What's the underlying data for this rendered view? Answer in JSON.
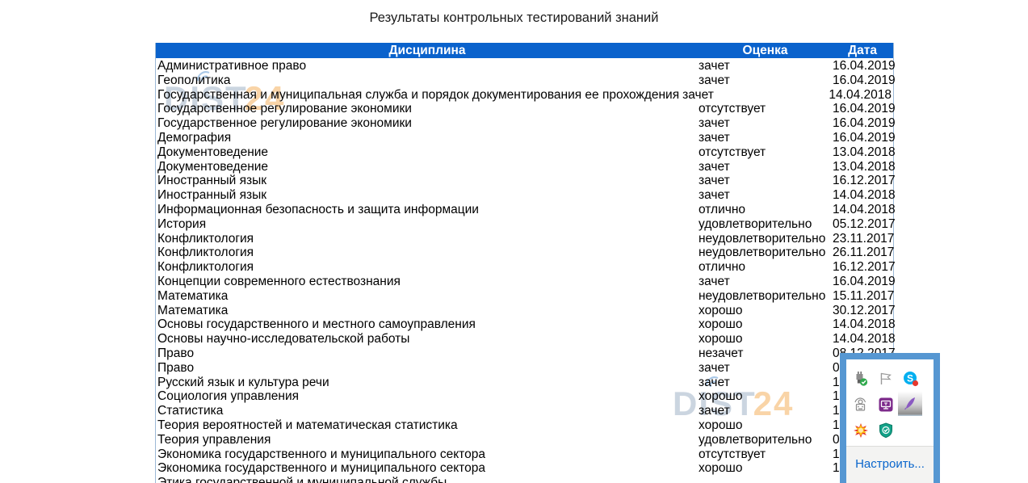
{
  "page": {
    "title": "Результаты контрольных тестирований знаний"
  },
  "table": {
    "columns": [
      "Дисциплина",
      "Оценка",
      "Дата"
    ],
    "header_bg": "#0a62cc",
    "border_color": "#9cb9d6",
    "rows": [
      {
        "discipline": "Административное право",
        "grade": "зачет",
        "date": "16.04.2019"
      },
      {
        "discipline": "Геополитика",
        "grade": "зачет",
        "date": "16.04.2019"
      },
      {
        "discipline": "Государственная и муниципальная служба и порядок документирования ее прохождения",
        "grade": "зачет",
        "date": "14.04.2018",
        "wide": true
      },
      {
        "discipline": "Государственное регулирование экономики",
        "grade": "отсутствует",
        "date": "16.04.2019"
      },
      {
        "discipline": "Государственное регулирование экономики",
        "grade": "зачет",
        "date": "16.04.2019"
      },
      {
        "discipline": "Демография",
        "grade": "зачет",
        "date": "16.04.2019"
      },
      {
        "discipline": "Документоведение",
        "grade": "отсутствует",
        "date": "13.04.2018"
      },
      {
        "discipline": "Документоведение",
        "grade": "зачет",
        "date": "13.04.2018"
      },
      {
        "discipline": "Иностранный язык",
        "grade": "зачет",
        "date": "16.12.2017"
      },
      {
        "discipline": "Иностранный язык",
        "grade": "зачет",
        "date": "14.04.2018"
      },
      {
        "discipline": "Информационная безопасность и защита информации",
        "grade": "отлично",
        "date": "14.04.2018"
      },
      {
        "discipline": "История",
        "grade": "удовлетворительно",
        "date": "05.12.2017"
      },
      {
        "discipline": "Конфликтология",
        "grade": "неудовлетворительно",
        "date": "23.11.2017"
      },
      {
        "discipline": "Конфликтология",
        "grade": "неудовлетворительно",
        "date": "26.11.2017"
      },
      {
        "discipline": "Конфликтология",
        "grade": "отлично",
        "date": "16.12.2017"
      },
      {
        "discipline": "Концепции современного естествознания",
        "grade": "зачет",
        "date": "16.04.2019"
      },
      {
        "discipline": "Математика",
        "grade": "неудовлетворительно",
        "date": "15.11.2017"
      },
      {
        "discipline": "Математика",
        "grade": "хорошо",
        "date": "30.12.2017"
      },
      {
        "discipline": "Основы государственного и местного самоуправления",
        "grade": "хорошо",
        "date": "14.04.2018"
      },
      {
        "discipline": "Основы научно-исследовательской работы",
        "grade": "хорошо",
        "date": "14.04.2018"
      },
      {
        "discipline": "Право",
        "grade": "незачет",
        "date": "08.12.2017"
      },
      {
        "discipline": "Право",
        "grade": "зачет",
        "date": "0",
        "date_partial": true
      },
      {
        "discipline": "Русский язык и культура речи",
        "grade": "зачет",
        "date": "1",
        "date_partial": true
      },
      {
        "discipline": "Социология управления",
        "grade": "хорошо",
        "date": "1",
        "date_partial": true
      },
      {
        "discipline": "Статистика",
        "grade": "зачет",
        "date": "1",
        "date_partial": true
      },
      {
        "discipline": "Теория вероятностей и математическая статистика",
        "grade": "хорошо",
        "date": "1",
        "date_partial": true
      },
      {
        "discipline": "Теория управления",
        "grade": "удовлетворительно",
        "date": "0",
        "date_partial": true
      },
      {
        "discipline": "Экономика государственного и муниципального сектора",
        "grade": "отсутствует",
        "date": "1",
        "date_partial": true
      },
      {
        "discipline": "Экономика государственного и муниципального сектора",
        "grade": "хорошо",
        "date": "1",
        "date_partial": true
      },
      {
        "discipline": "Этика государственной и муниципальной службы",
        "grade": "",
        "date": "",
        "cutoff": true
      }
    ]
  },
  "watermark": {
    "text_main": "DIST",
    "text_accent": "24",
    "main_color": "#bac7d6",
    "accent_color": "#f8cd98"
  },
  "tray_popup": {
    "customize_label": "Настроить...",
    "border_color": "#5697d2",
    "link_color": "#0a66cc",
    "icons": [
      {
        "name": "safely-remove-hardware-icon",
        "shape": "gray-usb-plug-green-check"
      },
      {
        "name": "flag-icon",
        "shape": "outline-pennant-flag"
      },
      {
        "name": "skype-icon",
        "shape": "blue-circle-white-s-red-badge"
      },
      {
        "name": "radio-device-icon",
        "shape": "gray-transmitter-with-waves"
      },
      {
        "name": "remote-screen-icon",
        "shape": "purple-square-white-monitor"
      },
      {
        "name": "pen-icon",
        "shape": "purple-feather-on-selected-cell"
      },
      {
        "name": "flower-icon",
        "shape": "yellow-red-flower"
      },
      {
        "name": "antivirus-shield-icon",
        "shape": "green-shield-white-check"
      }
    ]
  }
}
